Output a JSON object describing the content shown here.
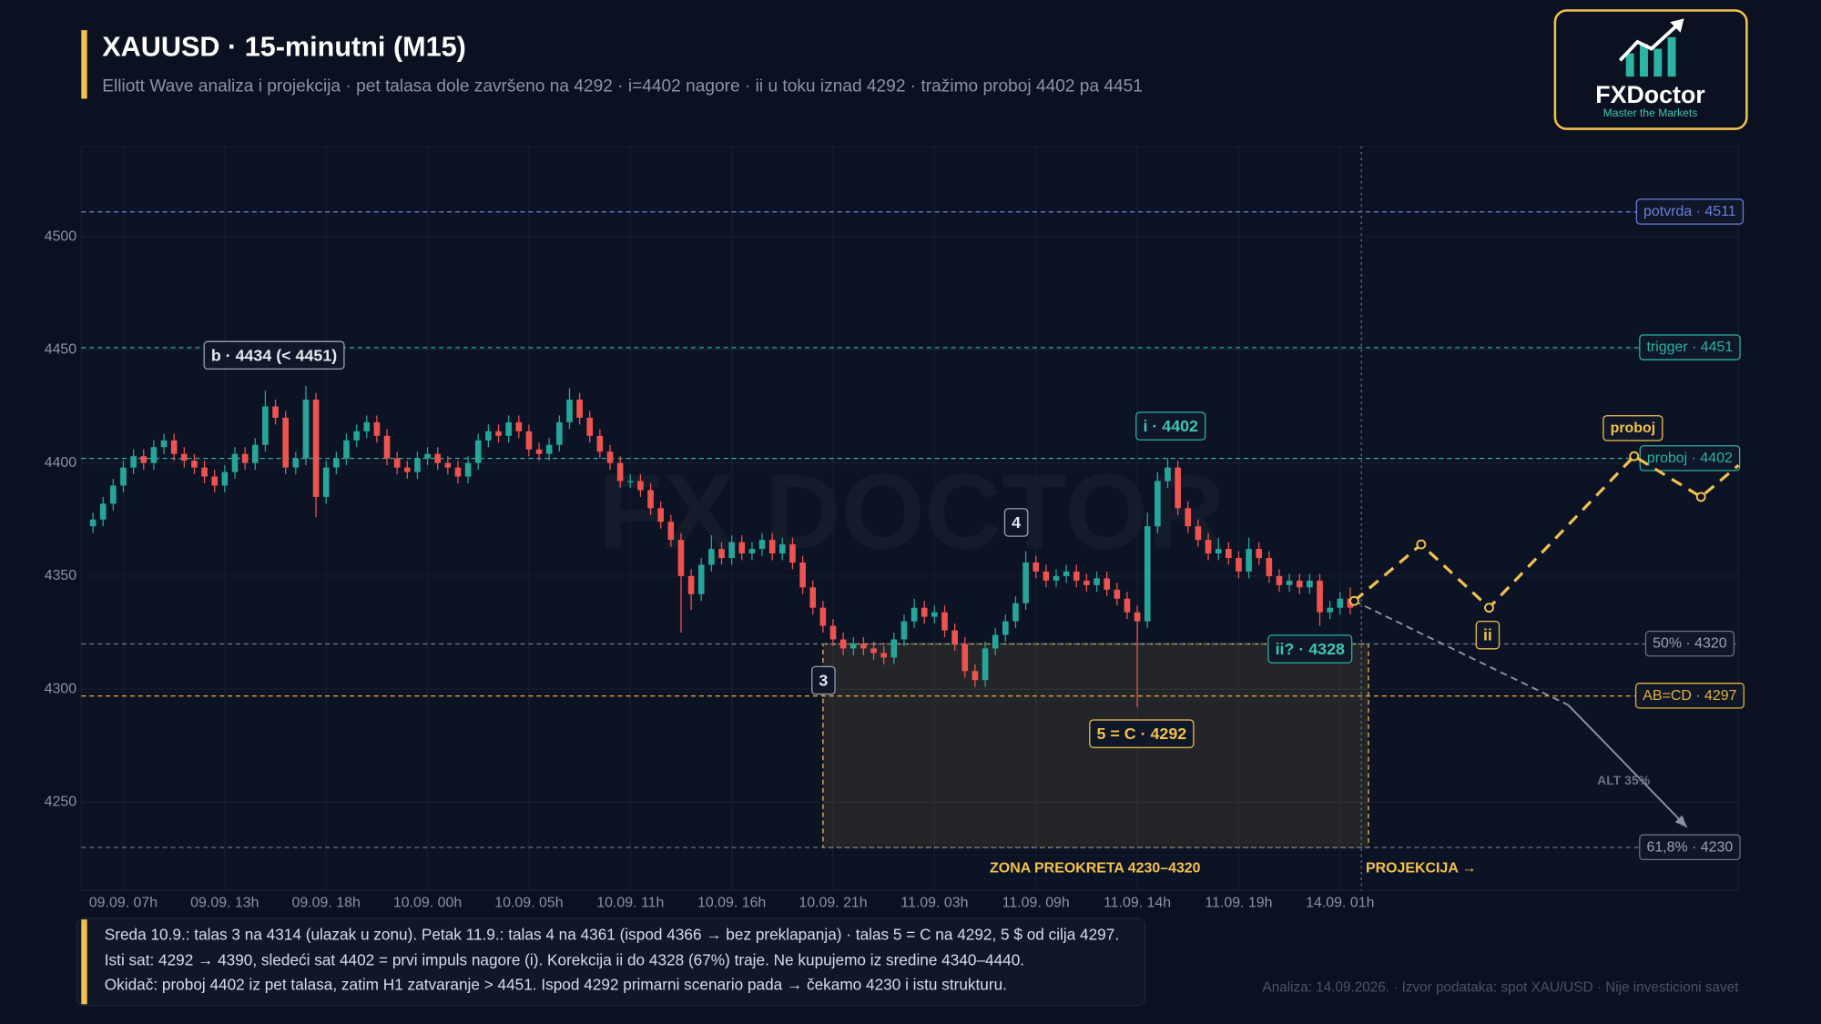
{
  "header": {
    "title": "XAUUSD · 15-minutni (M15)",
    "subtitle": "Elliott Wave analiza i projekcija · pet talasa dole završeno na 4292 · i=4402 nagore · ii u toku iznad 4292 · tražimo proboj 4402 pa 4451"
  },
  "logo": {
    "name": "FXDoctor",
    "tagline": "Master the Markets"
  },
  "watermark": "FX DOCTOR",
  "chart_data": {
    "type": "candlestick",
    "up_color": "#26a69a",
    "down_color": "#ef5350",
    "categories": [
      null,
      null,
      null,
      "09.09. 07h",
      null,
      null,
      null,
      null,
      null,
      null,
      null,
      null,
      null,
      "09.09. 13h",
      null,
      null,
      null,
      null,
      null,
      null,
      null,
      null,
      null,
      "09.09. 18h",
      null,
      null,
      null,
      null,
      null,
      null,
      null,
      null,
      null,
      "10.09. 00h",
      null,
      null,
      null,
      null,
      null,
      null,
      null,
      null,
      null,
      "10.09. 05h",
      null,
      null,
      null,
      null,
      null,
      null,
      null,
      null,
      null,
      "10.09. 11h",
      null,
      null,
      null,
      null,
      null,
      null,
      null,
      null,
      null,
      "10.09. 16h",
      null,
      null,
      null,
      null,
      null,
      null,
      null,
      null,
      null,
      "10.09. 21h",
      null,
      null,
      null,
      null,
      null,
      null,
      null,
      null,
      null,
      "11.09. 03h",
      null,
      null,
      null,
      null,
      null,
      null,
      null,
      null,
      null,
      "11.09. 09h",
      null,
      null,
      null,
      null,
      null,
      null,
      null,
      null,
      null,
      "11.09. 14h",
      null,
      null,
      null,
      null,
      null,
      null,
      null,
      null,
      null,
      "11.09. 19h",
      null,
      null,
      null,
      null,
      null,
      null,
      null,
      null,
      null,
      "14.09. 01h",
      null
    ],
    "open": [
      4372,
      4375,
      4382,
      4390,
      4398,
      4403,
      4400,
      4407,
      4410,
      4404,
      4401,
      4398,
      4394,
      4390,
      4396,
      4404,
      4400,
      4408,
      4425,
      4420,
      4398,
      4402,
      4428,
      4385,
      4398,
      4402,
      4410,
      4414,
      4418,
      4412,
      4402,
      4398,
      4396,
      4402,
      4404,
      4400,
      4398,
      4394,
      4400,
      4410,
      4414,
      4412,
      4418,
      4414,
      4406,
      4404,
      4408,
      4418,
      4428,
      4420,
      4412,
      4405,
      4400,
      4392,
      4392,
      4388,
      4380,
      4374,
      4366,
      4350,
      4342,
      4355,
      4362,
      4358,
      4365,
      4360,
      4362,
      4366,
      4360,
      4364,
      4356,
      4345,
      4336,
      4328,
      4322,
      4318,
      4320,
      4318,
      4316,
      4314,
      4322,
      4330,
      4336,
      4332,
      4334,
      4326,
      4320,
      4308,
      4304,
      4318,
      4324,
      4330,
      4338,
      4356,
      4352,
      4348,
      4350,
      4352,
      4348,
      4346,
      4349,
      4344,
      4340,
      4334,
      4330,
      4372,
      4392,
      4398,
      4380,
      4372,
      4366,
      4360,
      4362,
      4358,
      4352,
      4362,
      4358,
      4350,
      4346,
      4348,
      4345,
      4348,
      4334,
      4336,
      4340
    ],
    "high": [
      4378,
      4385,
      4393,
      4401,
      4406,
      4406,
      4410,
      4413,
      4413,
      4407,
      4404,
      4401,
      4397,
      4399,
      4407,
      4407,
      4411,
      4432,
      4428,
      4423,
      4405,
      4434,
      4431,
      4401,
      4405,
      4413,
      4417,
      4421,
      4421,
      4415,
      4405,
      4401,
      4405,
      4407,
      4407,
      4403,
      4401,
      4403,
      4413,
      4417,
      4417,
      4421,
      4421,
      4417,
      4409,
      4411,
      4421,
      4433,
      4431,
      4423,
      4415,
      4408,
      4403,
      4395,
      4395,
      4391,
      4383,
      4377,
      4369,
      4353,
      4358,
      4368,
      4365,
      4368,
      4368,
      4365,
      4369,
      4369,
      4367,
      4367,
      4359,
      4348,
      4339,
      4331,
      4325,
      4323,
      4323,
      4321,
      4319,
      4325,
      4333,
      4340,
      4339,
      4337,
      4337,
      4329,
      4323,
      4311,
      4321,
      4327,
      4333,
      4341,
      4361,
      4359,
      4355,
      4353,
      4355,
      4355,
      4351,
      4352,
      4352,
      4347,
      4343,
      4337,
      4378,
      4396,
      4402,
      4401,
      4383,
      4375,
      4369,
      4367,
      4365,
      4361,
      4367,
      4365,
      4361,
      4353,
      4351,
      4351,
      4351,
      4351,
      4339,
      4343,
      4345
    ],
    "low": [
      4369,
      4372,
      4379,
      4387,
      4395,
      4397,
      4397,
      4404,
      4401,
      4398,
      4395,
      4391,
      4387,
      4387,
      4393,
      4397,
      4397,
      4405,
      4417,
      4395,
      4395,
      4399,
      4376,
      4382,
      4395,
      4399,
      4407,
      4411,
      4409,
      4399,
      4395,
      4393,
      4393,
      4399,
      4397,
      4395,
      4391,
      4391,
      4397,
      4407,
      4409,
      4409,
      4411,
      4403,
      4401,
      4401,
      4405,
      4415,
      4417,
      4409,
      4402,
      4397,
      4389,
      4389,
      4385,
      4377,
      4371,
      4363,
      4325,
      4335,
      4339,
      4352,
      4355,
      4355,
      4357,
      4357,
      4359,
      4357,
      4357,
      4353,
      4342,
      4333,
      4325,
      4319,
      4315,
      4315,
      4315,
      4313,
      4311,
      4311,
      4319,
      4327,
      4329,
      4329,
      4323,
      4317,
      4305,
      4301,
      4301,
      4315,
      4321,
      4327,
      4335,
      4349,
      4345,
      4345,
      4347,
      4345,
      4343,
      4343,
      4341,
      4337,
      4331,
      4292,
      4327,
      4369,
      4389,
      4377,
      4369,
      4363,
      4357,
      4357,
      4355,
      4349,
      4349,
      4355,
      4347,
      4343,
      4343,
      4342,
      4342,
      4328,
      4331,
      4333,
      4333
    ],
    "close": [
      4375,
      4382,
      4390,
      4398,
      4403,
      4400,
      4407,
      4410,
      4404,
      4401,
      4398,
      4394,
      4390,
      4396,
      4404,
      4400,
      4408,
      4425,
      4420,
      4398,
      4402,
      4428,
      4385,
      4398,
      4402,
      4410,
      4414,
      4418,
      4412,
      4402,
      4398,
      4396,
      4402,
      4404,
      4400,
      4398,
      4394,
      4400,
      4410,
      4414,
      4412,
      4418,
      4414,
      4406,
      4404,
      4408,
      4418,
      4428,
      4420,
      4412,
      4405,
      4400,
      4392,
      4392,
      4388,
      4380,
      4374,
      4366,
      4350,
      4342,
      4355,
      4362,
      4358,
      4365,
      4360,
      4362,
      4366,
      4360,
      4364,
      4356,
      4345,
      4336,
      4328,
      4322,
      4318,
      4320,
      4318,
      4316,
      4314,
      4322,
      4330,
      4336,
      4332,
      4334,
      4326,
      4320,
      4308,
      4304,
      4318,
      4324,
      4330,
      4338,
      4356,
      4352,
      4348,
      4350,
      4352,
      4348,
      4346,
      4349,
      4344,
      4340,
      4334,
      4330,
      4372,
      4392,
      4398,
      4380,
      4372,
      4366,
      4360,
      4362,
      4358,
      4352,
      4362,
      4358,
      4350,
      4346,
      4348,
      4345,
      4348,
      4334,
      4336,
      4340,
      4336
    ],
    "xlim": [
      -1.15,
      162.3
    ],
    "ylim": [
      4211,
      4540
    ],
    "yticks": [
      4250,
      4300,
      4350,
      4400,
      4450,
      4500
    ],
    "grid": true,
    "levels": [
      {
        "value": 4511,
        "label": "potvrda · 4511",
        "color": "#6b7fd7"
      },
      {
        "value": 4451,
        "label": "trigger · 4451",
        "color": "#2bb3a3"
      },
      {
        "value": 4402,
        "label": "proboj · 4402",
        "color": "#2bb3a3"
      },
      {
        "value": 4320,
        "label": "50% · 4320",
        "color": "#6b7280"
      },
      {
        "value": 4297,
        "label": "AB=CD · 4297",
        "color": "#e5b23a"
      },
      {
        "value": 4230,
        "label": "61,8% · 4230",
        "color": "#6b7280"
      }
    ],
    "zone": {
      "low": 4230,
      "high": 4320,
      "x": [
        72,
        125.8
      ],
      "color": "#f2c14e"
    },
    "projection_start": 125.1,
    "projection": {
      "x": [
        124.4,
        131,
        137.7,
        152,
        158.6,
        162.3
      ],
      "y": [
        4339,
        4364,
        4336,
        4403,
        4385,
        4399
      ],
      "color": "#f2c14e"
    },
    "alternative": {
      "x": [
        124.4,
        145.5,
        157.2
      ],
      "y": [
        4339,
        4293,
        4239
      ],
      "color": "#8b93a7"
    },
    "annotations": [
      "b · 4434 (< 4451)",
      "i · 4402",
      "4",
      "3",
      "5 = C · 4292",
      "ii? · 4328",
      "ii",
      "proboj",
      "ZONA PREOKRETA 4230–4320",
      "PROJEKCIJA →",
      "ALT 35%"
    ]
  },
  "notes": [
    "Sreda 10.9.: talas 3 na 4314 (ulazak u zonu). Petak 11.9.: talas 4 na 4361 (ispod 4366 → bez preklapanja) · talas 5 = C na 4292, 5 $ od cilja 4297.",
    "Isti sat: 4292 → 4390, sledeći sat 4402 = prvi impuls nagore (i). Korekcija ii do 4328 (67%) traje. Ne kupujemo iz sredine 4340–4440.",
    "Okidač: proboj 4402 iz pet talasa, zatim H1 zatvaranje > 4451. Ispod 4292 primarni scenario pada → čekamo 4230 i istu strukturu."
  ],
  "footer": "Analiza: 14.09.2026. · Izvor podataka: spot XAU/USD · Nije investicioni savet"
}
